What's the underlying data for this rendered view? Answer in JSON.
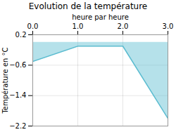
{
  "chart_data": {
    "type": "area",
    "title": "Evolution de la température",
    "xlabel": "heure par heure",
    "ylabel": "Température en °C",
    "x": [
      0,
      1,
      2,
      3
    ],
    "values": [
      -0.5,
      -0.1,
      -0.1,
      -2.0
    ],
    "color": "#5bbcd0",
    "xlim": [
      0,
      3
    ],
    "ylim": [
      -2.2,
      0.2
    ],
    "xticks": [
      0,
      1,
      2,
      3
    ],
    "yticks": [
      0.2,
      -0.6,
      -1.4,
      -2.2
    ],
    "grid": true
  }
}
